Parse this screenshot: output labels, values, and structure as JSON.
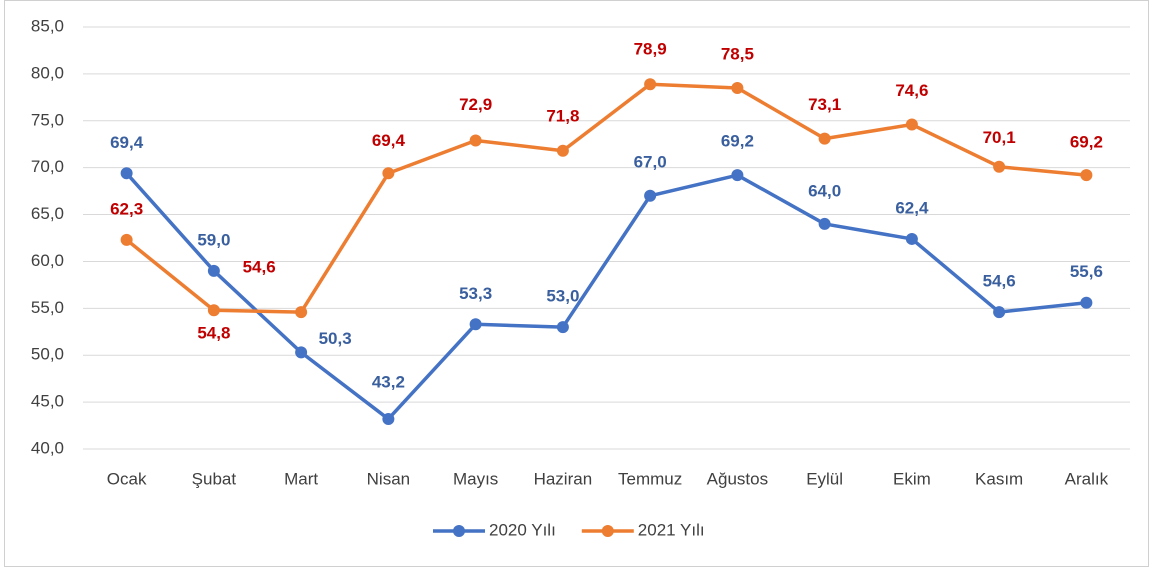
{
  "chart_data": {
    "type": "line",
    "categories": [
      "Ocak",
      "Şubat",
      "Mart",
      "Nisan",
      "Mayıs",
      "Haziran",
      "Temmuz",
      "Ağustos",
      "Eylül",
      "Ekim",
      "Kasım",
      "Aralık"
    ],
    "series": [
      {
        "name": "2020 Yılı",
        "color": "#4472c4",
        "label_color": "#3a5f9e",
        "values": [
          69.4,
          59.0,
          50.3,
          43.2,
          53.3,
          53.0,
          67.0,
          69.2,
          64.0,
          62.4,
          54.6,
          55.6
        ],
        "value_labels": [
          "69,4",
          "59,0",
          "50,3",
          "43,2",
          "53,3",
          "53,0",
          "67,0",
          "69,2",
          "64,0",
          "62,4",
          "54,6",
          "55,6"
        ]
      },
      {
        "name": "2021 Yılı",
        "color": "#ed7d31",
        "label_color": "#c00000",
        "values": [
          62.3,
          54.8,
          54.6,
          69.4,
          72.9,
          71.8,
          78.9,
          78.5,
          73.1,
          74.6,
          70.1,
          69.2
        ],
        "value_labels": [
          "62,3",
          "54,8",
          "54,6",
          "69,4",
          "72,9",
          "71,8",
          "78,9",
          "78,5",
          "73,1",
          "74,6",
          "70,1",
          "69,2"
        ]
      }
    ],
    "ylim": [
      40,
      85
    ],
    "yticks": [
      {
        "value": 40,
        "label": "40,0"
      },
      {
        "value": 45,
        "label": "45,0"
      },
      {
        "value": 50,
        "label": "50,0"
      },
      {
        "value": 55,
        "label": "55,0"
      },
      {
        "value": 60,
        "label": "60,0"
      },
      {
        "value": 65,
        "label": "65,0"
      },
      {
        "value": 70,
        "label": "70,0"
      },
      {
        "value": 75,
        "label": "75,0"
      },
      {
        "value": 80,
        "label": "80,0"
      },
      {
        "value": 85,
        "label": "85,0"
      }
    ],
    "grid": true,
    "legend": "bottom"
  }
}
